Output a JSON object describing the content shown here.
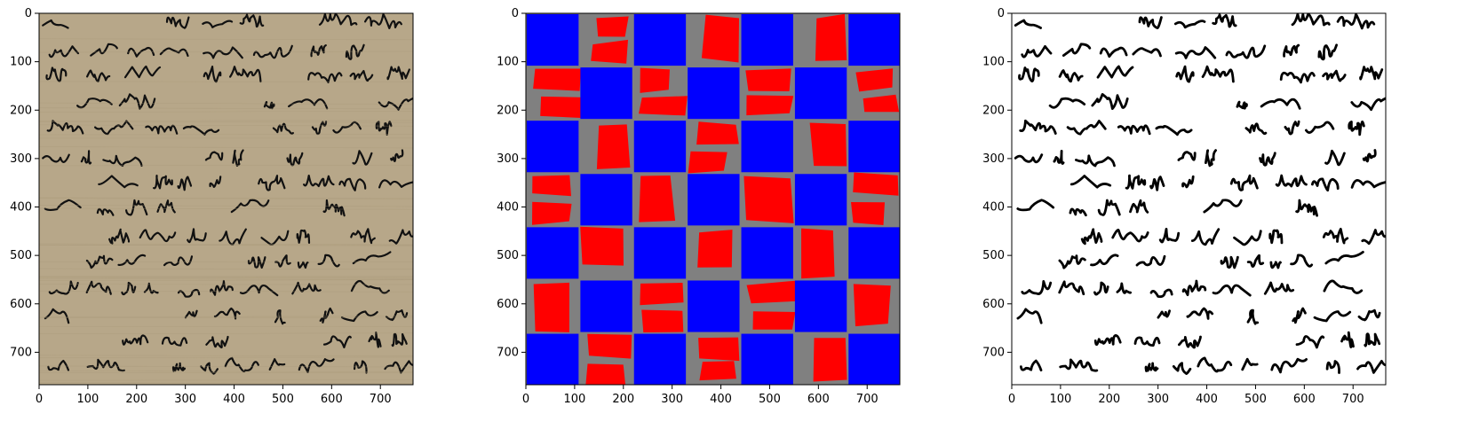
{
  "figure": {
    "panels": [
      {
        "id": "original",
        "image_desc": "handwritten manuscript fragment on aged beige paper",
        "xticks": [
          "0",
          "100",
          "200",
          "300",
          "400",
          "500",
          "600",
          "700"
        ],
        "yticks": [
          "0",
          "100",
          "200",
          "300",
          "400",
          "500",
          "600",
          "700"
        ]
      },
      {
        "id": "mask",
        "image_desc": "checkerboard tiling with blue squares and red quadrilaterals on gray",
        "colors": {
          "blue": "#0000ff",
          "red": "#ff0000",
          "gray": "#808080"
        },
        "xticks": [
          "0",
          "100",
          "200",
          "300",
          "400",
          "500",
          "600",
          "700"
        ],
        "yticks": [
          "0",
          "100",
          "200",
          "300",
          "400",
          "500",
          "600",
          "700"
        ]
      },
      {
        "id": "binarized",
        "image_desc": "black handwriting on white background",
        "xticks": [
          "0",
          "100",
          "200",
          "300",
          "400",
          "500",
          "600",
          "700"
        ],
        "yticks": [
          "0",
          "100",
          "200",
          "300",
          "400",
          "500",
          "600",
          "700"
        ]
      }
    ],
    "colors": {
      "paper": "#b7a789",
      "ink": "#111111",
      "axis": "#000000",
      "background": "#ffffff"
    }
  }
}
